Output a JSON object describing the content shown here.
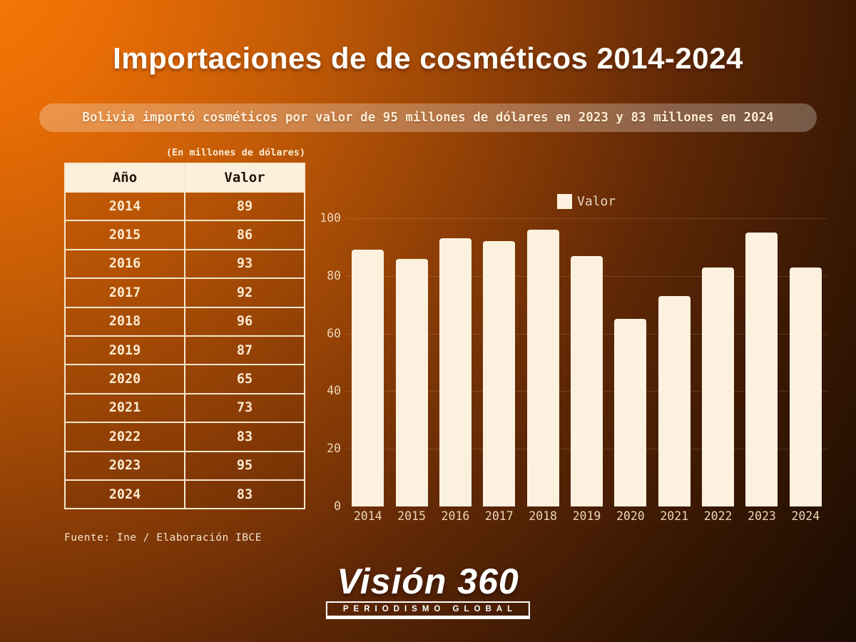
{
  "header": {
    "title": "Importaciones de de cosméticos 2014-2024",
    "subtitle": "Bolivia importó cosméticos por valor de 95 millones de dólares en 2023 y 83 millones en 2024"
  },
  "table": {
    "caption": "(En millones de dólares)",
    "columns": [
      "Año",
      "Valor"
    ],
    "rows": [
      [
        "2014",
        "89"
      ],
      [
        "2015",
        "86"
      ],
      [
        "2016",
        "93"
      ],
      [
        "2017",
        "92"
      ],
      [
        "2018",
        "96"
      ],
      [
        "2019",
        "87"
      ],
      [
        "2020",
        "65"
      ],
      [
        "2021",
        "73"
      ],
      [
        "2022",
        "83"
      ],
      [
        "2023",
        "95"
      ],
      [
        "2024",
        "83"
      ]
    ]
  },
  "source": "Fuente: Ine / Elaboración IBCE",
  "chart_data": {
    "type": "bar",
    "categories": [
      "2014",
      "2015",
      "2016",
      "2017",
      "2018",
      "2019",
      "2020",
      "2021",
      "2022",
      "2023",
      "2024"
    ],
    "series": [
      {
        "name": "Valor",
        "values": [
          89,
          86,
          93,
          92,
          96,
          87,
          65,
          73,
          83,
          95,
          83
        ]
      }
    ],
    "title": "",
    "xlabel": "",
    "ylabel": "",
    "ylim": [
      0,
      100
    ],
    "yticks": [
      0,
      20,
      40,
      60,
      80,
      100
    ],
    "grid": true,
    "legend_position": "top-right",
    "legend": [
      "Valor"
    ]
  },
  "branding": {
    "name": "Visión 360",
    "tagline": "PERIODISMO GLOBAL"
  },
  "colors": {
    "bar": "#fbf1de",
    "table_header_bg": "#fbf0db",
    "table_border": "#f6e7cb",
    "cream_text": "#fbead0",
    "bg_orange": "#f97c05",
    "bg_dark": "#150902"
  }
}
